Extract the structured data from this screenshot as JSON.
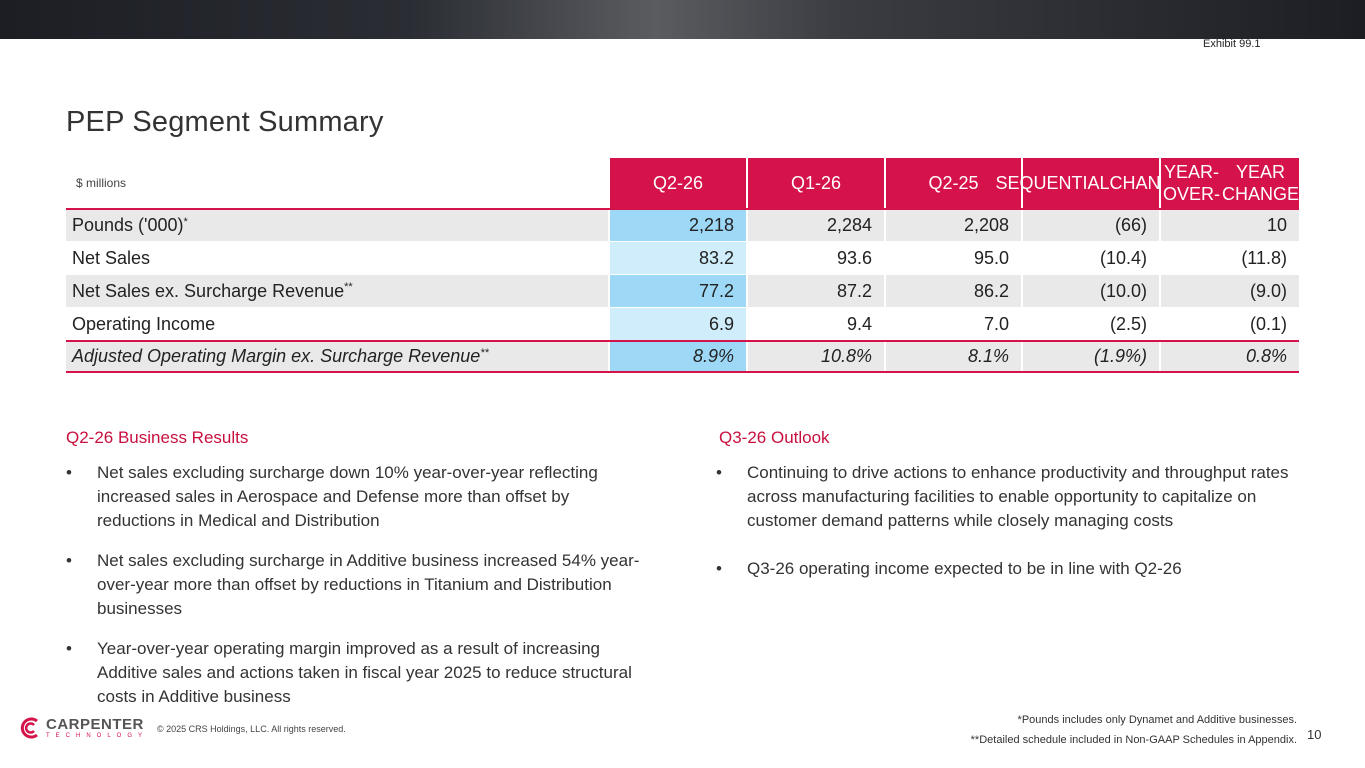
{
  "header": {
    "exhibit": "Exhibit 99.1"
  },
  "title": "PEP Segment Summary",
  "table": {
    "units": "$ millions",
    "columns": [
      "Q2-26",
      "Q1-26",
      "Q2-25",
      "SEQUENTIAL CHANGE",
      "YEAR-OVER-YEAR CHANGE"
    ],
    "column_lines": [
      [
        "Q2-26"
      ],
      [
        "Q1-26"
      ],
      [
        "Q2-25"
      ],
      [
        "SEQUENTIAL",
        "CHANGE"
      ],
      [
        "YEAR-OVER-",
        "YEAR CHANGE"
      ]
    ],
    "rows": [
      {
        "label": "Pounds ('000)",
        "mark": "*",
        "values": [
          "2,218",
          "2,284",
          "2,208",
          "(66)",
          "10"
        ]
      },
      {
        "label": "Net Sales",
        "mark": "",
        "values": [
          "83.2",
          "93.6",
          "95.0",
          "(10.4)",
          "(11.8)"
        ]
      },
      {
        "label": "Net Sales ex. Surcharge Revenue",
        "mark": "**",
        "values": [
          "77.2",
          "87.2",
          "86.2",
          "(10.0)",
          "(9.0)"
        ]
      },
      {
        "label": "Operating Income",
        "mark": "",
        "values": [
          "6.9",
          "9.4",
          "7.0",
          "(2.5)",
          "(0.1)"
        ]
      },
      {
        "label": "Adjusted Operating Margin ex. Surcharge Revenue",
        "mark": "**",
        "values": [
          "8.9%",
          "10.8%",
          "8.1%",
          "(1.9%)",
          "0.8%"
        ]
      }
    ]
  },
  "results": {
    "title": "Q2-26 Business Results",
    "bullets": [
      "Net sales excluding surcharge down 10% year-over-year reflecting increased sales in Aerospace and Defense more than offset by reductions in Medical and Distribution",
      "Net sales excluding surcharge in Additive business increased 54% year-over-year more than offset by reductions in Titanium and Distribution businesses",
      "Year-over-year operating margin improved as a result of increasing Additive sales and actions taken in fiscal year 2025 to reduce structural costs in Additive business"
    ]
  },
  "outlook": {
    "title": "Q3-26 Outlook",
    "bullets": [
      "Continuing to drive actions to enhance productivity and throughput rates across manufacturing facilities to enable opportunity to capitalize on customer demand patterns while closely managing costs",
      "Q3-26 operating income expected to be in line with Q2-26"
    ]
  },
  "footer": {
    "logo_main": "CARPENTER",
    "logo_sub": "TECHNOLOGY",
    "copyright": "© 2025 CRS Holdings, LLC. All rights reserved.",
    "note1": "*Pounds includes only Dynamet and Additive businesses.",
    "note2": "**Detailed schedule included in Non-GAAP Schedules in Appendix.",
    "page": "10"
  },
  "colors": {
    "accent": "#d6124a",
    "highlight_dark": "#9ed8f7",
    "highlight_light": "#cfedfb",
    "row_grey": "#e9e9e9"
  }
}
